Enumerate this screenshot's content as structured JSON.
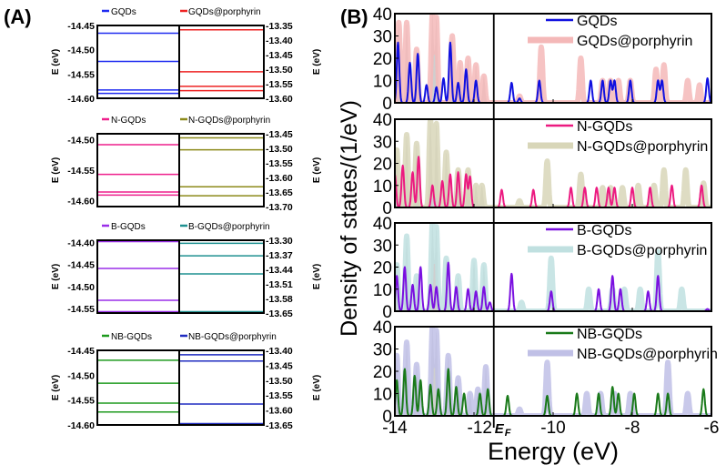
{
  "panel_labels": {
    "a": "(A)",
    "b": "(B)"
  },
  "chart_data": [
    {
      "type": "energy-level-diagram",
      "panel": "(A)",
      "ylabel": "E (eV)",
      "subplots": [
        {
          "left": {
            "name": "GQDs",
            "color": "#1f2bf0",
            "ylim": [
              -14.6,
              -14.45
            ],
            "ticks": [
              "-14.45",
              "-14.50",
              "-14.55",
              "-14.60"
            ],
            "levels": [
              -14.466,
              -14.524,
              -14.583,
              -14.59
            ]
          },
          "right": {
            "name": "GQDs@porphyrin",
            "color": "#ee2222",
            "ylim": [
              -13.6,
              -13.35
            ],
            "ticks": [
              "-13.35",
              "-13.40",
              "-13.45",
              "-13.50",
              "-13.55",
              "-13.60"
            ],
            "levels": [
              -13.365,
              -13.509,
              -13.559,
              -13.574
            ]
          }
        },
        {
          "left": {
            "name": "N-GQDs",
            "color": "#ee1f8c",
            "ylim": [
              -14.61,
              -14.49
            ],
            "ticks": [
              "-14.50",
              "-14.55",
              "-14.60"
            ],
            "levels": [
              -14.508,
              -14.557,
              -14.586,
              -14.591
            ]
          },
          "right": {
            "name": "N-GQDs@porphyrin",
            "color": "#8c8a1a",
            "ylim": [
              -13.7,
              -13.45
            ],
            "ticks": [
              "-13.45",
              "-13.50",
              "-13.55",
              "-13.60",
              "-13.65",
              "-13.70"
            ],
            "levels": [
              -13.464,
              -13.505,
              -13.632,
              -13.663
            ]
          }
        },
        {
          "left": {
            "name": "B-GQDs",
            "color": "#9a2ee8",
            "ylim": [
              -14.56,
              -14.395
            ],
            "ticks": [
              "-14.40",
              "-14.45",
              "-14.50",
              "-14.55"
            ],
            "levels": [
              -14.398,
              -14.459,
              -14.531,
              -14.557
            ]
          },
          "right": {
            "name": "B-GQDs@porphyrin",
            "color": "#1e9090",
            "ylim": [
              -13.65,
              -13.3
            ],
            "ticks": [
              "-13.30",
              "-13.37",
              "-13.44",
              "-13.51",
              "-13.58",
              "-13.65"
            ],
            "levels": [
              -13.315,
              -13.375,
              -13.462,
              -13.648
            ]
          }
        },
        {
          "left": {
            "name": "NB-GQDs",
            "color": "#1e9a1e",
            "ylim": [
              -14.6,
              -14.45
            ],
            "ticks": [
              "-14.45",
              "-14.50",
              "-14.55",
              "-14.60"
            ],
            "levels": [
              -14.47,
              -14.516,
              -14.556,
              -14.574
            ]
          },
          "right": {
            "name": "NB-GQDs@porphyrin",
            "color": "#1f2bc0",
            "ylim": [
              -13.65,
              -13.4
            ],
            "ticks": [
              "-13.40",
              "-13.45",
              "-13.50",
              "-13.55",
              "-13.60",
              "-13.65"
            ],
            "levels": [
              -13.415,
              -13.436,
              -13.58,
              -13.647
            ]
          }
        }
      ]
    },
    {
      "type": "line",
      "panel": "(B)",
      "xlabel": "Energy (eV)",
      "ylabel": "Density of states/(1/eV)",
      "xlim": [
        -14,
        -6
      ],
      "ylim": [
        0,
        40
      ],
      "xticks": [
        "-14",
        "-12",
        "-10",
        "-8",
        "-6"
      ],
      "xtick_values": [
        -14,
        -12,
        -10,
        -8,
        -6
      ],
      "yticks": [
        "0",
        "10",
        "20",
        "30",
        "40"
      ],
      "fermi_level": {
        "label": "EF",
        "x": -11.5
      },
      "subplots": [
        {
          "legend": "top-right",
          "pristine": {
            "name": "GQDs",
            "color": "#1010e0",
            "peaks": [
              [
                -13.92,
                27
              ],
              [
                -13.62,
                18
              ],
              [
                -13.42,
                22
              ],
              [
                -13.2,
                8
              ],
              [
                -12.95,
                7
              ],
              [
                -12.77,
                11
              ],
              [
                -12.6,
                27
              ],
              [
                -12.4,
                9
              ],
              [
                -12.2,
                15
              ],
              [
                -11.95,
                10
              ],
              [
                -11.05,
                9
              ],
              [
                -10.85,
                2
              ],
              [
                -10.35,
                10
              ],
              [
                -9.05,
                10
              ],
              [
                -8.75,
                10
              ],
              [
                -8.55,
                10
              ],
              [
                -8.45,
                10
              ],
              [
                -8.05,
                10
              ],
              [
                -7.35,
                10
              ],
              [
                -7.25,
                10
              ],
              [
                -6.1,
                11
              ]
            ]
          },
          "porphyrin": {
            "name": "GQDs@porphyrin",
            "color": "#f4b8b8",
            "peaks": [
              [
                -13.9,
                36
              ],
              [
                -13.7,
                36
              ],
              [
                -13.45,
                24
              ],
              [
                -13.05,
                40
              ],
              [
                -12.95,
                38
              ],
              [
                -12.55,
                30
              ],
              [
                -12.35,
                18
              ],
              [
                -12.15,
                20
              ],
              [
                -11.95,
                17
              ],
              [
                -11.75,
                12
              ],
              [
                -10.85,
                3
              ],
              [
                -10.3,
                25
              ],
              [
                -9.3,
                20
              ],
              [
                -8.75,
                10
              ],
              [
                -8.55,
                10
              ],
              [
                -8.35,
                10
              ],
              [
                -8.05,
                10
              ],
              [
                -7.4,
                15
              ],
              [
                -7.2,
                17
              ],
              [
                -6.6,
                10
              ],
              [
                -6.3,
                8
              ]
            ]
          }
        },
        {
          "legend": "top-right",
          "pristine": {
            "name": "N-GQDs",
            "color": "#ec1a80",
            "peaks": [
              [
                -14.0,
                15
              ],
              [
                -13.8,
                19
              ],
              [
                -13.55,
                16
              ],
              [
                -13.4,
                23
              ],
              [
                -13.05,
                10
              ],
              [
                -12.8,
                12
              ],
              [
                -12.6,
                15
              ],
              [
                -12.4,
                16
              ],
              [
                -12.2,
                15
              ],
              [
                -12.1,
                14
              ],
              [
                -11.3,
                8
              ],
              [
                -10.5,
                8
              ],
              [
                -9.55,
                9
              ],
              [
                -9.2,
                9
              ],
              [
                -8.9,
                9
              ],
              [
                -8.6,
                9
              ],
              [
                -8.45,
                9
              ],
              [
                -8.0,
                9
              ],
              [
                -7.55,
                9
              ],
              [
                -7.0,
                10
              ],
              [
                -6.25,
                10
              ]
            ]
          },
          "porphyrin": {
            "name": "N-GQDs@porphyrin",
            "color": "#d8d6b8",
            "peaks": [
              [
                -13.95,
                26
              ],
              [
                -13.7,
                33
              ],
              [
                -13.45,
                29
              ],
              [
                -13.1,
                40
              ],
              [
                -12.95,
                38
              ],
              [
                -12.7,
                25
              ],
              [
                -12.4,
                17
              ],
              [
                -12.15,
                17
              ],
              [
                -11.95,
                10
              ],
              [
                -11.8,
                10
              ],
              [
                -10.85,
                3
              ],
              [
                -10.15,
                21
              ],
              [
                -9.3,
                15
              ],
              [
                -8.75,
                9
              ],
              [
                -8.55,
                9
              ],
              [
                -8.25,
                9
              ],
              [
                -7.85,
                10
              ],
              [
                -7.45,
                10
              ],
              [
                -7.2,
                17
              ],
              [
                -6.65,
                17
              ],
              [
                -6.2,
                11
              ]
            ]
          }
        },
        {
          "legend": "top-right",
          "pristine": {
            "name": "B-GQDs",
            "color": "#7a10e0",
            "peaks": [
              [
                -13.95,
                16
              ],
              [
                -13.75,
                20
              ],
              [
                -13.55,
                12
              ],
              [
                -13.35,
                20
              ],
              [
                -13.1,
                12
              ],
              [
                -12.95,
                11
              ],
              [
                -12.65,
                22
              ],
              [
                -12.45,
                11
              ],
              [
                -12.15,
                10
              ],
              [
                -11.95,
                9
              ],
              [
                -11.75,
                11
              ],
              [
                -11.6,
                4
              ],
              [
                -11.05,
                17
              ],
              [
                -10.05,
                9
              ],
              [
                -8.85,
                10
              ],
              [
                -8.5,
                16
              ],
              [
                -8.3,
                10
              ],
              [
                -7.6,
                9
              ],
              [
                -7.35,
                16
              ],
              [
                -6.1,
                1
              ]
            ]
          },
          "porphyrin": {
            "name": "B-GQDs@porphyrin",
            "color": "#c0e0e0",
            "peaks": [
              [
                -13.95,
                21
              ],
              [
                -13.7,
                34
              ],
              [
                -13.45,
                16
              ],
              [
                -13.05,
                40
              ],
              [
                -12.95,
                38
              ],
              [
                -12.7,
                24
              ],
              [
                -12.4,
                16
              ],
              [
                -12.0,
                23
              ],
              [
                -11.75,
                21
              ],
              [
                -10.8,
                4
              ],
              [
                -10.05,
                24
              ],
              [
                -9.1,
                10
              ],
              [
                -8.5,
                10
              ],
              [
                -8.2,
                10
              ],
              [
                -7.8,
                10
              ],
              [
                -7.35,
                27
              ],
              [
                -6.75,
                10
              ]
            ]
          }
        },
        {
          "legend": "top-right",
          "pristine": {
            "name": "NB-GQDs",
            "color": "#1a7a1a",
            "peaks": [
              [
                -13.95,
                16
              ],
              [
                -13.75,
                21
              ],
              [
                -13.5,
                18
              ],
              [
                -13.35,
                16
              ],
              [
                -13.1,
                14
              ],
              [
                -12.9,
                12
              ],
              [
                -12.65,
                21
              ],
              [
                -12.45,
                13
              ],
              [
                -12.25,
                10
              ],
              [
                -11.85,
                10
              ],
              [
                -11.65,
                12
              ],
              [
                -11.15,
                9
              ],
              [
                -10.15,
                9
              ],
              [
                -9.4,
                10
              ],
              [
                -8.85,
                10
              ],
              [
                -8.5,
                13
              ],
              [
                -8.35,
                10
              ],
              [
                -7.95,
                10
              ],
              [
                -7.35,
                10
              ],
              [
                -7.1,
                10
              ],
              [
                -6.2,
                12
              ]
            ]
          },
          "porphyrin": {
            "name": "NB-GQDs@porphyrin",
            "color": "#c0c0e6",
            "peaks": [
              [
                -13.95,
                27
              ],
              [
                -13.7,
                33
              ],
              [
                -13.45,
                23
              ],
              [
                -13.05,
                40
              ],
              [
                -12.95,
                38
              ],
              [
                -12.65,
                27
              ],
              [
                -12.4,
                17
              ],
              [
                -12.1,
                10
              ],
              [
                -11.9,
                12
              ],
              [
                -11.7,
                22
              ],
              [
                -10.85,
                3
              ],
              [
                -10.15,
                24
              ],
              [
                -9.15,
                10
              ],
              [
                -8.8,
                10
              ],
              [
                -8.45,
                10
              ],
              [
                -8.05,
                10
              ],
              [
                -7.1,
                24
              ],
              [
                -6.6,
                10
              ]
            ]
          }
        }
      ]
    }
  ]
}
